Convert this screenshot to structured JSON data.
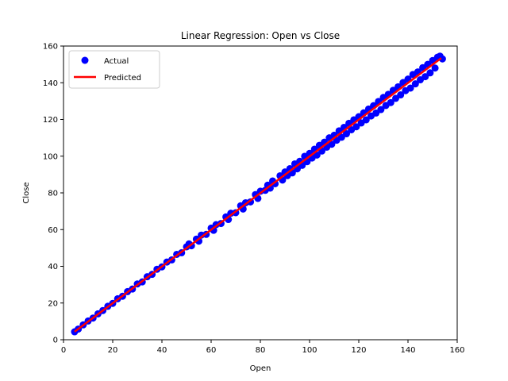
{
  "chart_data": {
    "type": "scatter",
    "title": "Linear Regression: Open vs Close",
    "xlabel": "Open",
    "ylabel": "Close",
    "xlim": [
      0,
      160
    ],
    "ylim": [
      0,
      160
    ],
    "xticks": [
      0,
      20,
      40,
      60,
      80,
      100,
      120,
      140,
      160
    ],
    "yticks": [
      0,
      20,
      40,
      60,
      80,
      100,
      120,
      140,
      160
    ],
    "grid": false,
    "legend_position": "top-left",
    "series": [
      {
        "name": "Actual",
        "kind": "scatter",
        "color": "#0000ff",
        "points": [
          [
            4.5,
            4.3
          ],
          [
            6,
            5.8
          ],
          [
            8,
            8.1
          ],
          [
            10,
            10.2
          ],
          [
            12,
            11.8
          ],
          [
            14,
            14.1
          ],
          [
            16,
            15.9
          ],
          [
            18,
            18.2
          ],
          [
            20,
            19.8
          ],
          [
            22,
            22.3
          ],
          [
            24,
            23.7
          ],
          [
            26,
            26.2
          ],
          [
            28,
            27.6
          ],
          [
            30,
            30.4
          ],
          [
            32,
            31.5
          ],
          [
            34,
            34.3
          ],
          [
            36,
            35.6
          ],
          [
            38,
            38.4
          ],
          [
            40,
            39.7
          ],
          [
            42,
            42.3
          ],
          [
            44,
            43.5
          ],
          [
            46,
            46.5
          ],
          [
            48,
            47.4
          ],
          [
            50,
            50.6
          ],
          [
            51,
            52.2
          ],
          [
            52,
            51.2
          ],
          [
            54,
            54.8
          ],
          [
            55,
            53.7
          ],
          [
            56,
            57.0
          ],
          [
            58,
            57.4
          ],
          [
            60,
            60.8
          ],
          [
            61,
            59.6
          ],
          [
            62,
            62.7
          ],
          [
            64,
            63.3
          ],
          [
            66,
            66.9
          ],
          [
            67,
            65.5
          ],
          [
            68,
            68.9
          ],
          [
            70,
            69.2
          ],
          [
            72,
            73.0
          ],
          [
            73,
            71.2
          ],
          [
            74,
            74.6
          ],
          [
            76,
            75.1
          ],
          [
            78,
            79.1
          ],
          [
            79,
            77.0
          ],
          [
            80,
            80.9
          ],
          [
            82,
            81.4
          ],
          [
            83,
            84.2
          ],
          [
            84,
            82.6
          ],
          [
            85,
            86.5
          ],
          [
            86,
            85.0
          ],
          [
            88,
            89.3
          ],
          [
            89,
            87.0
          ],
          [
            90,
            91.4
          ],
          [
            91,
            89.4
          ],
          [
            92,
            93.2
          ],
          [
            93,
            90.9
          ],
          [
            94,
            95.8
          ],
          [
            95,
            93.1
          ],
          [
            96,
            97.2
          ],
          [
            97,
            95.0
          ],
          [
            98,
            99.9
          ],
          [
            99,
            97.0
          ],
          [
            100,
            101.5
          ],
          [
            101,
            99.0
          ],
          [
            102,
            103.8
          ],
          [
            103,
            100.6
          ],
          [
            104,
            105.9
          ],
          [
            105,
            102.8
          ],
          [
            106,
            107.6
          ],
          [
            107,
            104.9
          ],
          [
            108,
            110.0
          ],
          [
            109,
            106.5
          ],
          [
            110,
            111.4
          ],
          [
            111,
            108.7
          ],
          [
            112,
            113.8
          ],
          [
            113,
            110.3
          ],
          [
            114,
            115.7
          ],
          [
            115,
            112.2
          ],
          [
            116,
            117.9
          ],
          [
            117,
            114.4
          ],
          [
            118,
            119.8
          ],
          [
            119,
            116.0
          ],
          [
            120,
            121.5
          ],
          [
            121,
            118.1
          ],
          [
            122,
            123.6
          ],
          [
            123,
            119.8
          ],
          [
            124,
            125.7
          ],
          [
            125,
            121.9
          ],
          [
            126,
            127.5
          ],
          [
            127,
            123.5
          ],
          [
            128,
            129.8
          ],
          [
            129,
            125.4
          ],
          [
            130,
            132.0
          ],
          [
            131,
            127.6
          ],
          [
            132,
            133.7
          ],
          [
            133,
            129.2
          ],
          [
            134,
            135.9
          ],
          [
            135,
            131.5
          ],
          [
            136,
            137.8
          ],
          [
            137,
            133.4
          ],
          [
            138,
            140.1
          ],
          [
            139,
            135.7
          ],
          [
            140,
            142.0
          ],
          [
            141,
            137.1
          ],
          [
            142,
            144.5
          ],
          [
            143,
            139.4
          ],
          [
            144,
            145.9
          ],
          [
            145,
            141.6
          ],
          [
            146,
            148.2
          ],
          [
            147,
            143.3
          ],
          [
            148,
            150.0
          ],
          [
            149,
            145.4
          ],
          [
            150,
            152.1
          ],
          [
            151,
            148.0
          ],
          [
            152,
            153.9
          ],
          [
            153,
            154.5
          ],
          [
            154,
            153.0
          ]
        ]
      },
      {
        "name": "Predicted",
        "kind": "line",
        "color": "#ff0000",
        "x": [
          4.5,
          153.5
        ],
        "y": [
          4.4,
          153.4
        ]
      }
    ]
  }
}
